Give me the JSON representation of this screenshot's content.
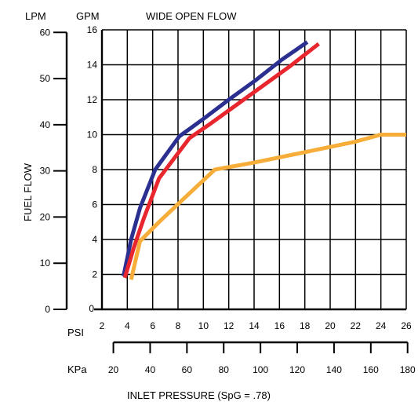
{
  "chart_data": {
    "type": "line",
    "title": "WIDE OPEN FLOW",
    "ylabel": "FUEL FLOW",
    "xlabel": "INLET PRESSURE (SpG = .78)",
    "y_units_primary": "GPM",
    "y_units_secondary": "LPM",
    "x_units_primary": "PSI",
    "x_units_secondary": "KPa",
    "xlim": [
      2,
      26
    ],
    "ylim": [
      0,
      16
    ],
    "grid": true,
    "gpm_ticks": [
      "2",
      "4",
      "6",
      "8",
      "10",
      "12",
      "14",
      "16"
    ],
    "gpm_zero": "0",
    "lpm_ticks": [
      "0",
      "10",
      "20",
      "30",
      "40",
      "50",
      "60"
    ],
    "psi_ticks": [
      "2",
      "4",
      "6",
      "8",
      "10",
      "12",
      "14",
      "16",
      "18",
      "20",
      "22",
      "24",
      "26"
    ],
    "kpa_ticks": [
      "20",
      "40",
      "60",
      "80",
      "100",
      "120",
      "140",
      "160",
      "180"
    ],
    "series": [
      {
        "color": "#2b2f8f",
        "points": [
          [
            3.7,
            1.9
          ],
          [
            4.3,
            4.0
          ],
          [
            5.0,
            5.8
          ],
          [
            6.2,
            8.0
          ],
          [
            8.1,
            9.9
          ],
          [
            10.0,
            10.9
          ],
          [
            12.0,
            12.0
          ],
          [
            14.1,
            13.1
          ],
          [
            16.2,
            14.3
          ],
          [
            18.2,
            15.3
          ]
        ]
      },
      {
        "color": "#e8262d",
        "points": [
          [
            3.8,
            1.8
          ],
          [
            4.5,
            3.5
          ],
          [
            5.3,
            5.2
          ],
          [
            6.5,
            7.5
          ],
          [
            8.9,
            9.8
          ],
          [
            10.5,
            10.6
          ],
          [
            12.6,
            11.7
          ],
          [
            14.7,
            12.8
          ],
          [
            16.8,
            13.9
          ],
          [
            19.1,
            15.2
          ]
        ]
      },
      {
        "color": "#f7ad3a",
        "points": [
          [
            4.3,
            1.7
          ],
          [
            5.0,
            3.9
          ],
          [
            6.5,
            5.0
          ],
          [
            8.4,
            6.3
          ],
          [
            10.9,
            8.0
          ],
          [
            14.0,
            8.4
          ],
          [
            18.0,
            9.0
          ],
          [
            22.0,
            9.6
          ],
          [
            24.0,
            10.0
          ],
          [
            26.0,
            10.0
          ]
        ]
      }
    ]
  }
}
